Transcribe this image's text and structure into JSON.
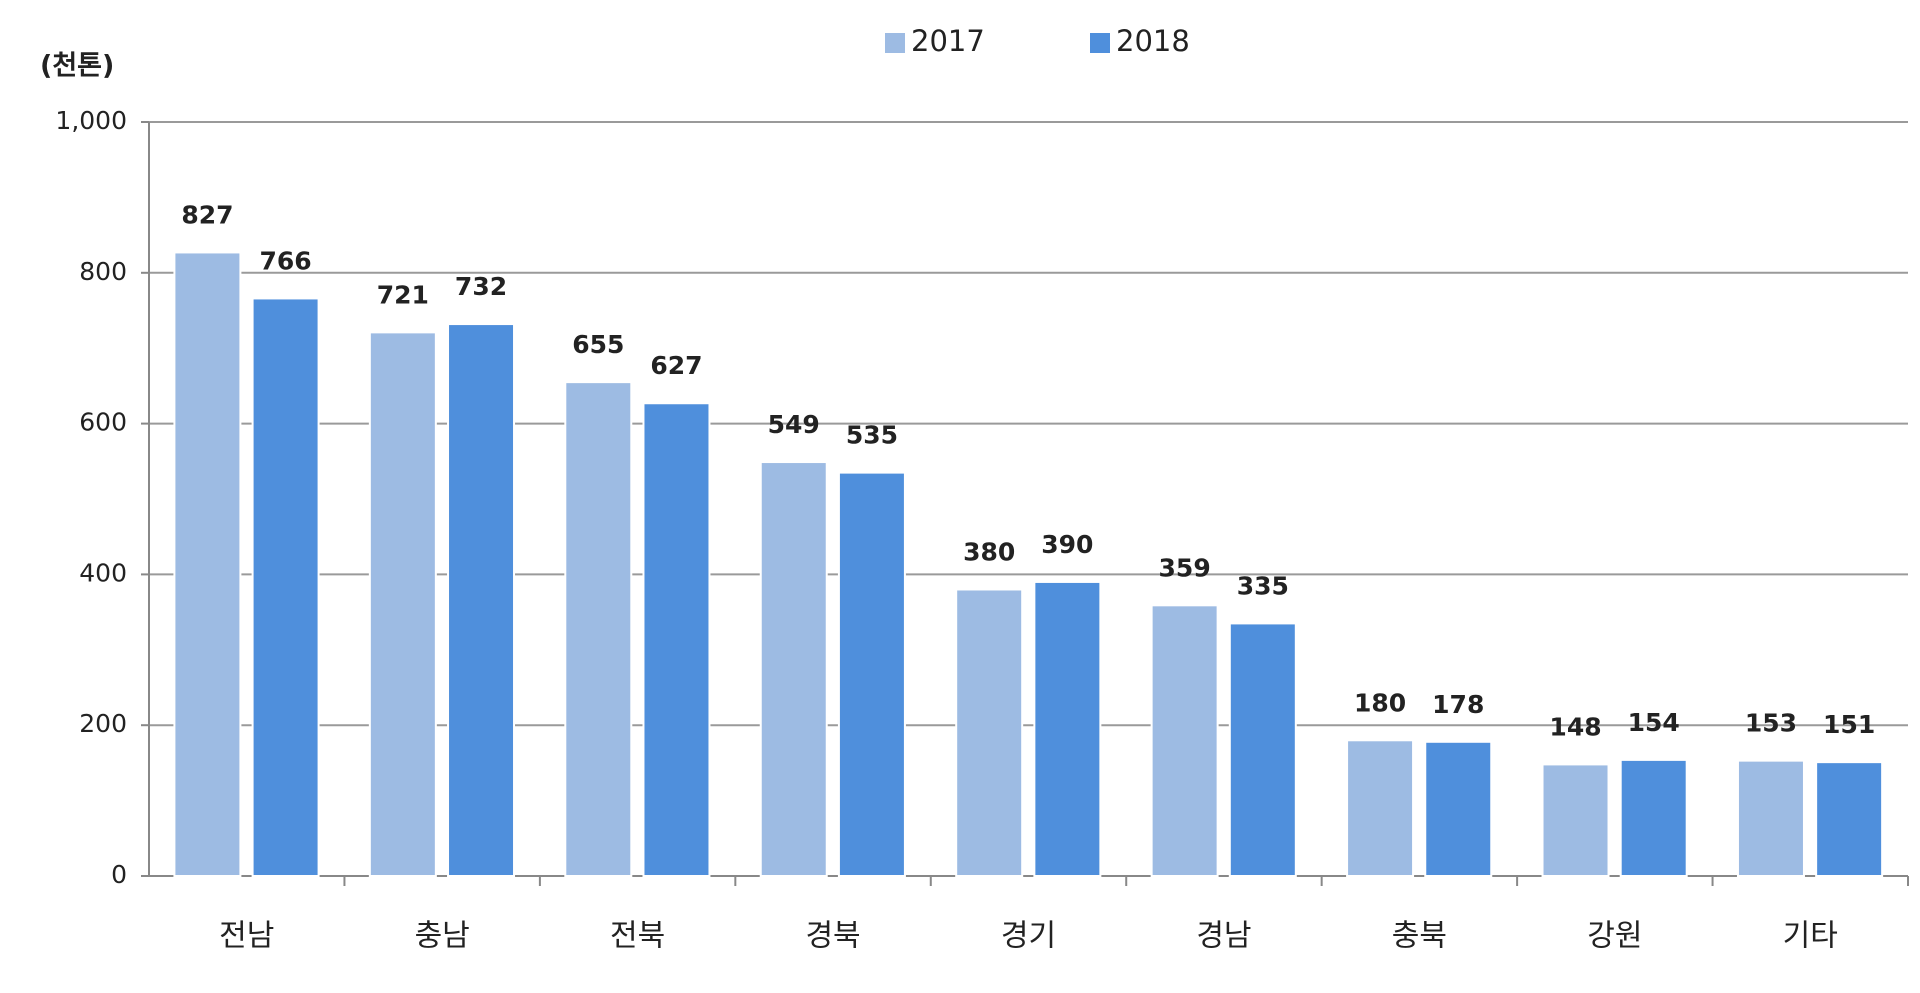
{
  "chart_data": {
    "type": "bar",
    "y_axis_label": "(천톤)",
    "categories": [
      "전남",
      "충남",
      "전북",
      "경북",
      "경기",
      "경남",
      "충북",
      "강원",
      "기타"
    ],
    "series": [
      {
        "name": "2017",
        "color": "#9dbbe3",
        "values": [
          827,
          721,
          655,
          549,
          380,
          359,
          180,
          148,
          153
        ]
      },
      {
        "name": "2018",
        "color": "#4f8fdc",
        "values": [
          766,
          732,
          627,
          535,
          390,
          335,
          178,
          154,
          151
        ]
      }
    ],
    "ylim": [
      0,
      1000
    ],
    "yticks": [
      0,
      200,
      400,
      600,
      800,
      {
        "value": 1000,
        "label": "1,000"
      }
    ],
    "grid": true
  }
}
